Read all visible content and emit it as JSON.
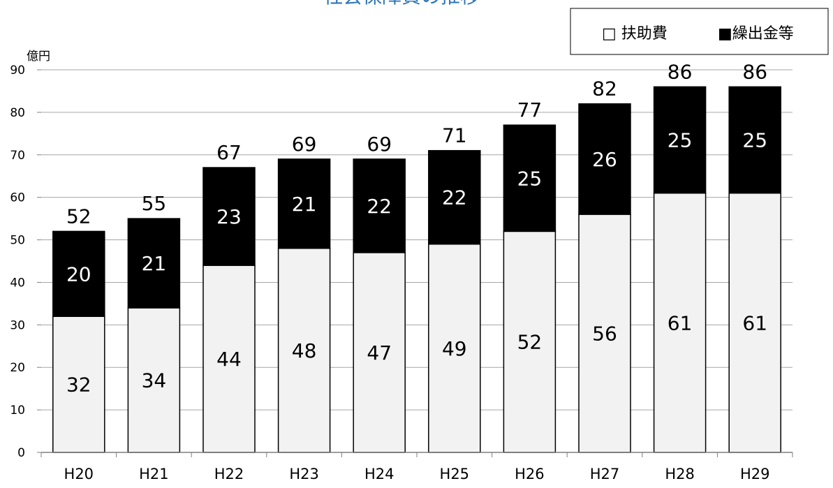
{
  "chart_data": {
    "type": "bar",
    "stacked": true,
    "title": "社会保障費の推移",
    "ylabel": "億円",
    "xlabel": "",
    "ylim": [
      0,
      90
    ],
    "yticks": [
      0,
      10,
      20,
      30,
      40,
      50,
      60,
      70,
      80,
      90
    ],
    "grid": true,
    "legend_position": "top-right",
    "categories": [
      "H20",
      "H21",
      "H22",
      "H23",
      "H24",
      "H25",
      "H26",
      "H27",
      "H28",
      "H29"
    ],
    "series": [
      {
        "name": "扶助費",
        "legend_label": "□ 扶助費",
        "color": "#f2f2f2",
        "values": [
          32,
          34,
          44,
          48,
          47,
          49,
          52,
          56,
          61,
          61
        ]
      },
      {
        "name": "繰出金等",
        "legend_label": "■繰出金等",
        "color": "#000000",
        "values": [
          20,
          21,
          23,
          21,
          22,
          22,
          25,
          26,
          25,
          25
        ]
      }
    ],
    "totals": [
      52,
      55,
      67,
      69,
      69,
      71,
      77,
      82,
      86,
      86
    ],
    "colors": {
      "title": "#2e75b6",
      "grid": "#a6a6a6",
      "axis": "#7f7f7f"
    }
  }
}
